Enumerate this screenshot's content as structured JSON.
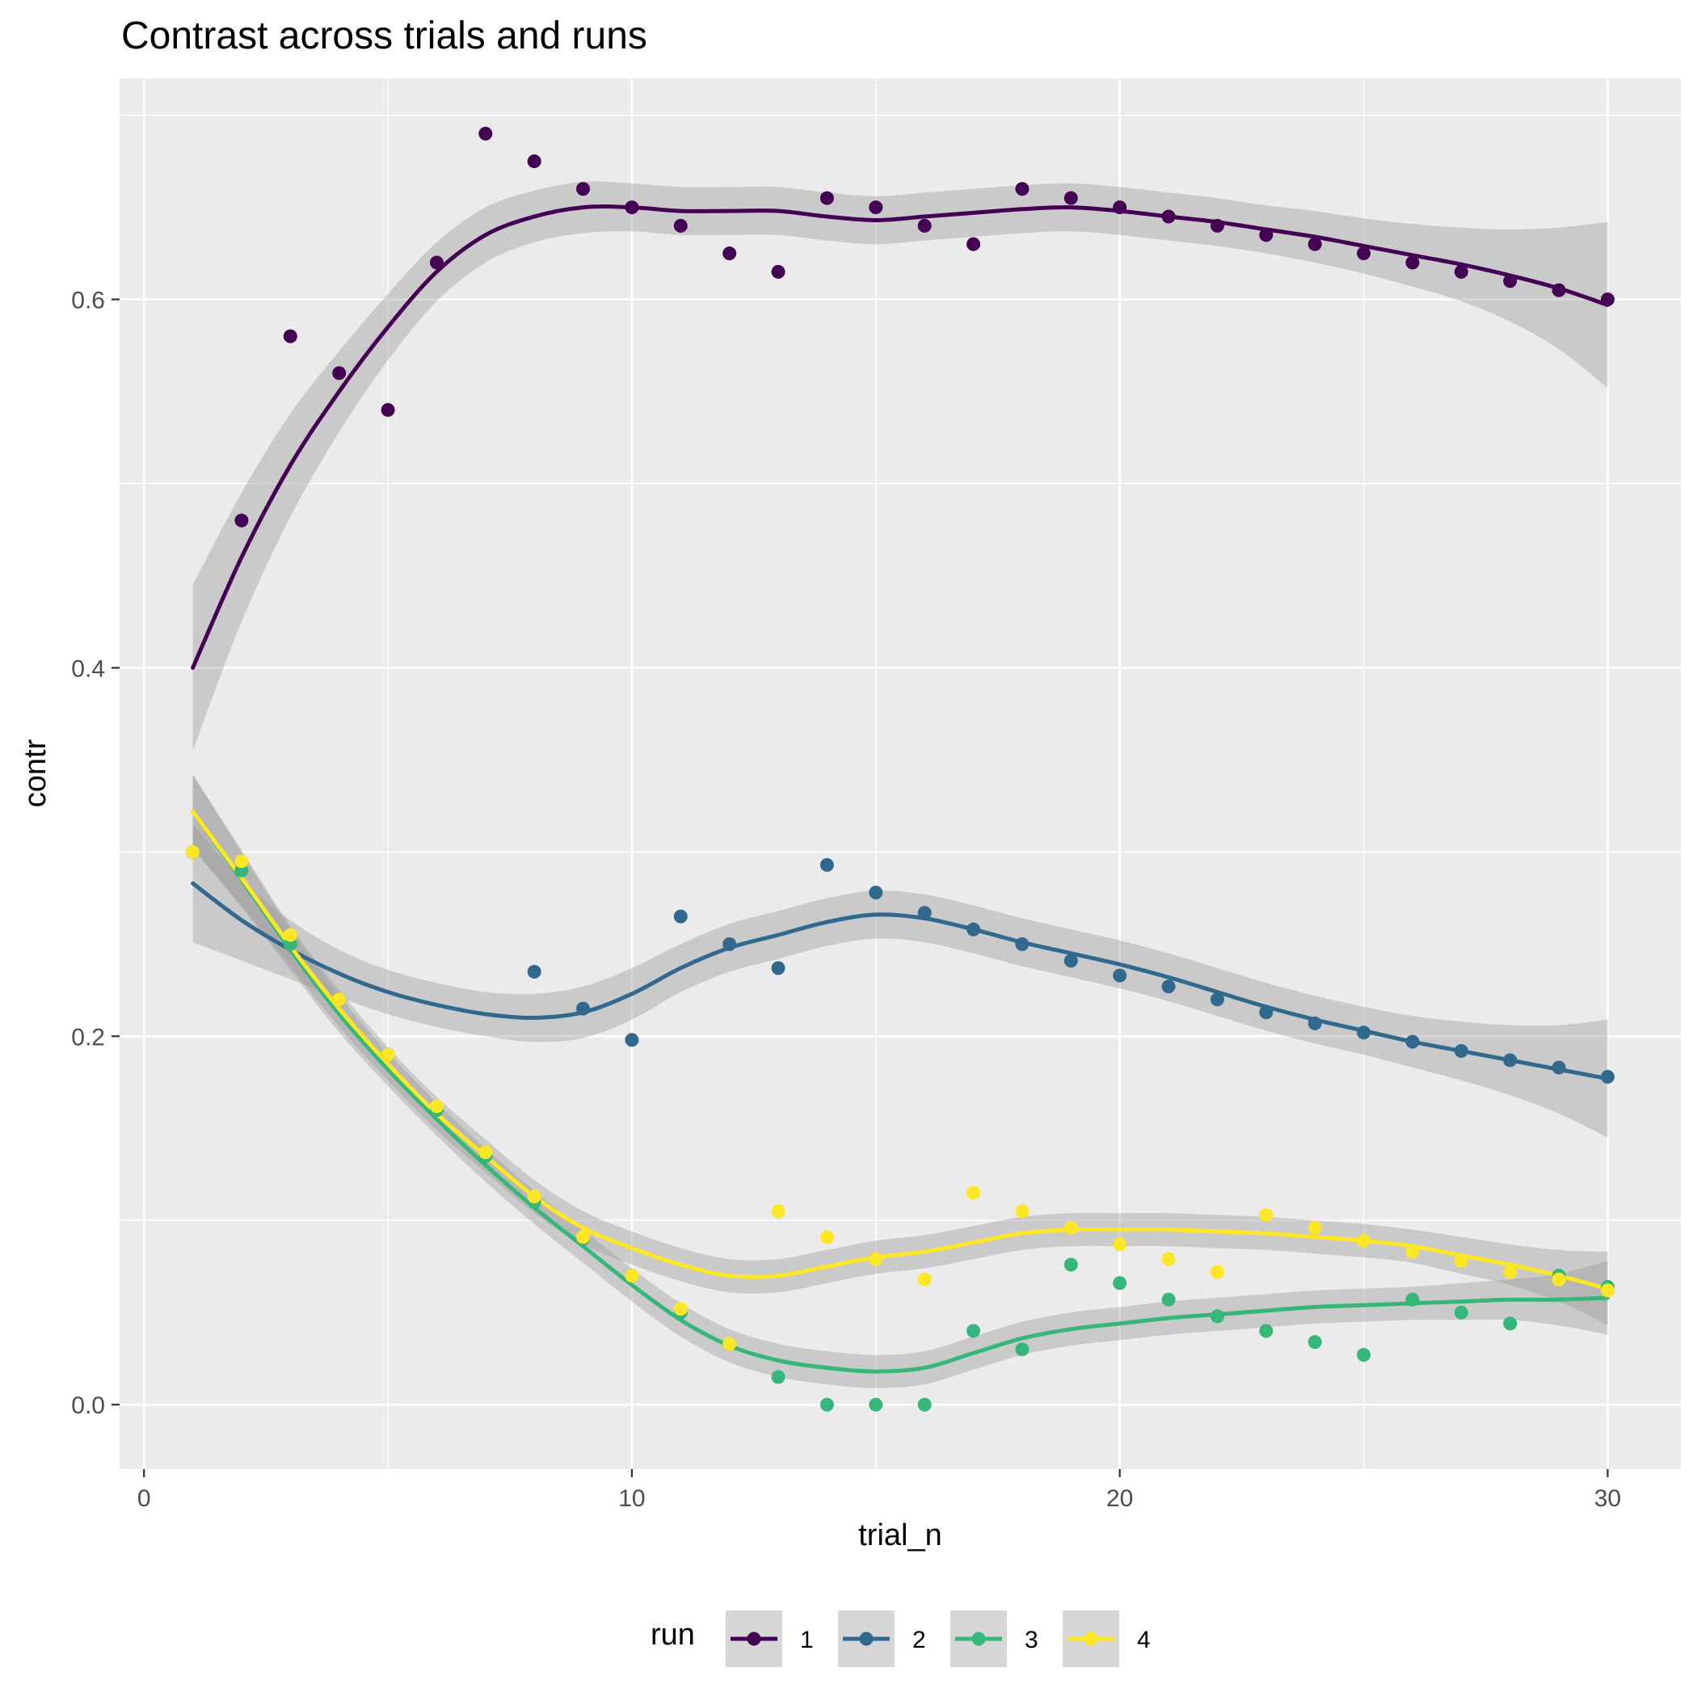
{
  "chart_data": {
    "type": "scatter",
    "title": "Contrast across trials and runs",
    "xlabel": "trial_n",
    "ylabel": "contr",
    "xlim": [
      -0.5,
      31.5
    ],
    "ylim": [
      -0.035,
      0.72
    ],
    "x_ticks": [
      0,
      10,
      20,
      30
    ],
    "x_tick_labels": [
      "0",
      "10",
      "20",
      "30"
    ],
    "y_ticks": [
      0.0,
      0.2,
      0.4,
      0.6
    ],
    "y_tick_labels": [
      "0.0",
      "0.2",
      "0.4",
      "0.6"
    ],
    "grid": true,
    "smoother": "loess with confidence band",
    "legend": {
      "title": "run",
      "position": "bottom"
    },
    "series": [
      {
        "name": "1",
        "color": "#440154",
        "x": [
          1,
          2,
          3,
          4,
          5,
          6,
          7,
          8,
          9,
          10,
          11,
          12,
          13,
          14,
          15,
          16,
          17,
          18,
          19,
          20,
          21,
          22,
          23,
          24,
          25,
          26,
          27,
          28,
          29,
          30
        ],
        "values": [
          0.3,
          0.48,
          0.58,
          0.56,
          0.54,
          0.62,
          0.69,
          0.675,
          0.66,
          0.65,
          0.64,
          0.625,
          0.615,
          0.655,
          0.65,
          0.64,
          0.63,
          0.66,
          0.655,
          0.65,
          0.645,
          0.64,
          0.635,
          0.63,
          0.625,
          0.62,
          0.615,
          0.61,
          0.605,
          0.6
        ],
        "fit": [
          0.4,
          0.46,
          0.51,
          0.55,
          0.585,
          0.615,
          0.635,
          0.645,
          0.65,
          0.65,
          0.648,
          0.648,
          0.648,
          0.645,
          0.643,
          0.645,
          0.647,
          0.649,
          0.65,
          0.648,
          0.645,
          0.642,
          0.638,
          0.634,
          0.629,
          0.624,
          0.619,
          0.613,
          0.606,
          0.597
        ],
        "fit_se": [
          0.045,
          0.035,
          0.028,
          0.022,
          0.018,
          0.016,
          0.015,
          0.014,
          0.014,
          0.013,
          0.013,
          0.013,
          0.013,
          0.013,
          0.013,
          0.013,
          0.013,
          0.013,
          0.013,
          0.013,
          0.013,
          0.013,
          0.013,
          0.014,
          0.015,
          0.017,
          0.02,
          0.025,
          0.033,
          0.045
        ]
      },
      {
        "name": "2",
        "color": "#31688E",
        "x": [
          1,
          2,
          3,
          4,
          5,
          6,
          7,
          8,
          9,
          10,
          11,
          12,
          13,
          14,
          15,
          16,
          17,
          18,
          19,
          20,
          21,
          22,
          23,
          24,
          25,
          26,
          27,
          28,
          29,
          30
        ],
        "values": [
          0.3,
          0.29,
          0.25,
          0.22,
          0.19,
          0.16,
          0.135,
          0.235,
          0.215,
          0.198,
          0.265,
          0.25,
          0.237,
          0.293,
          0.278,
          0.267,
          0.258,
          0.25,
          0.241,
          0.233,
          0.227,
          0.22,
          0.213,
          0.207,
          0.202,
          0.197,
          0.192,
          0.187,
          0.183,
          0.178
        ],
        "fit": [
          0.283,
          0.263,
          0.247,
          0.234,
          0.224,
          0.217,
          0.212,
          0.21,
          0.213,
          0.223,
          0.237,
          0.248,
          0.255,
          0.262,
          0.266,
          0.264,
          0.258,
          0.251,
          0.245,
          0.239,
          0.232,
          0.224,
          0.216,
          0.209,
          0.203,
          0.197,
          0.192,
          0.187,
          0.182,
          0.177
        ],
        "fit_se": [
          0.032,
          0.022,
          0.016,
          0.013,
          0.012,
          0.012,
          0.012,
          0.013,
          0.014,
          0.014,
          0.013,
          0.013,
          0.013,
          0.013,
          0.013,
          0.013,
          0.013,
          0.013,
          0.013,
          0.013,
          0.013,
          0.013,
          0.013,
          0.013,
          0.013,
          0.014,
          0.016,
          0.019,
          0.024,
          0.032
        ]
      },
      {
        "name": "3",
        "color": "#35B779",
        "x": [
          1,
          2,
          3,
          4,
          5,
          6,
          7,
          8,
          9,
          10,
          11,
          12,
          13,
          14,
          15,
          16,
          17,
          18,
          19,
          20,
          21,
          22,
          23,
          24,
          25,
          26,
          27,
          28,
          29,
          30
        ],
        "values": [
          0.3,
          0.29,
          0.25,
          0.22,
          0.19,
          0.16,
          0.135,
          0.11,
          0.09,
          0.07,
          0.05,
          0.033,
          0.015,
          0.0,
          0.0,
          0.0,
          0.04,
          0.03,
          0.076,
          0.066,
          0.057,
          0.048,
          0.04,
          0.034,
          0.027,
          0.057,
          0.05,
          0.044,
          0.07,
          0.064
        ],
        "fit": [
          0.322,
          0.285,
          0.247,
          0.212,
          0.182,
          0.155,
          0.13,
          0.107,
          0.086,
          0.065,
          0.046,
          0.032,
          0.024,
          0.02,
          0.018,
          0.02,
          0.028,
          0.036,
          0.041,
          0.044,
          0.047,
          0.049,
          0.051,
          0.053,
          0.054,
          0.055,
          0.056,
          0.057,
          0.057,
          0.058
        ],
        "fit_se": [
          0.02,
          0.015,
          0.011,
          0.01,
          0.009,
          0.009,
          0.009,
          0.009,
          0.009,
          0.009,
          0.009,
          0.009,
          0.009,
          0.009,
          0.009,
          0.009,
          0.009,
          0.009,
          0.009,
          0.009,
          0.009,
          0.009,
          0.009,
          0.009,
          0.009,
          0.009,
          0.01,
          0.011,
          0.014,
          0.02
        ]
      },
      {
        "name": "4",
        "color": "#FDE725",
        "x": [
          1,
          2,
          3,
          4,
          5,
          6,
          7,
          8,
          9,
          10,
          11,
          12,
          13,
          14,
          15,
          16,
          17,
          18,
          19,
          20,
          21,
          22,
          23,
          24,
          25,
          26,
          27,
          28,
          29,
          30
        ],
        "values": [
          0.3,
          0.295,
          0.255,
          0.22,
          0.19,
          0.162,
          0.137,
          0.113,
          0.091,
          0.07,
          0.052,
          0.033,
          0.105,
          0.091,
          0.079,
          0.068,
          0.115,
          0.105,
          0.096,
          0.087,
          0.079,
          0.072,
          0.103,
          0.096,
          0.089,
          0.083,
          0.078,
          0.072,
          0.068,
          0.062
        ],
        "fit": [
          0.322,
          0.286,
          0.249,
          0.215,
          0.185,
          0.158,
          0.135,
          0.113,
          0.096,
          0.085,
          0.076,
          0.07,
          0.07,
          0.075,
          0.08,
          0.083,
          0.088,
          0.093,
          0.095,
          0.095,
          0.095,
          0.094,
          0.093,
          0.091,
          0.089,
          0.086,
          0.081,
          0.076,
          0.07,
          0.063
        ],
        "fit_se": [
          0.02,
          0.015,
          0.011,
          0.01,
          0.009,
          0.009,
          0.009,
          0.009,
          0.009,
          0.009,
          0.009,
          0.009,
          0.009,
          0.009,
          0.009,
          0.009,
          0.009,
          0.009,
          0.009,
          0.009,
          0.009,
          0.009,
          0.009,
          0.009,
          0.009,
          0.009,
          0.01,
          0.011,
          0.014,
          0.02
        ]
      }
    ]
  }
}
